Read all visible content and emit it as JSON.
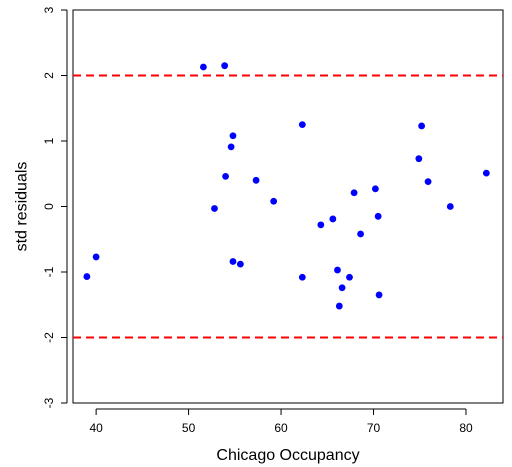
{
  "chart_data": {
    "type": "scatter",
    "title": "",
    "xlabel": "Chicago Occupancy",
    "ylabel": "std residuals",
    "xlim": [
      37.5,
      84
    ],
    "ylim": [
      -3.0,
      3.0
    ],
    "x_ticks": [
      40,
      50,
      60,
      70,
      80
    ],
    "y_ticks": [
      -3,
      -2,
      -1,
      0,
      1,
      2,
      3
    ],
    "x_tick_labels": [
      "40",
      "50",
      "60",
      "70",
      "80"
    ],
    "y_tick_labels": [
      "-3",
      "-2",
      "-1",
      "0",
      "1",
      "2",
      "3"
    ],
    "reference_lines": [
      {
        "y": 2,
        "style": "dashed",
        "color": "#ff0000"
      },
      {
        "y": -2,
        "style": "dashed",
        "color": "#ff0000"
      }
    ],
    "point_color": "#0000ff",
    "box": true,
    "grid": false,
    "points": [
      {
        "x": 39.0,
        "y": -1.07
      },
      {
        "x": 40.0,
        "y": -0.77
      },
      {
        "x": 51.6,
        "y": 2.13
      },
      {
        "x": 53.9,
        "y": 2.15
      },
      {
        "x": 52.8,
        "y": -0.03
      },
      {
        "x": 54.0,
        "y": 0.46
      },
      {
        "x": 54.6,
        "y": 0.91
      },
      {
        "x": 54.8,
        "y": 1.08
      },
      {
        "x": 54.8,
        "y": -0.84
      },
      {
        "x": 55.6,
        "y": -0.88
      },
      {
        "x": 57.3,
        "y": 0.4
      },
      {
        "x": 59.2,
        "y": 0.08
      },
      {
        "x": 62.3,
        "y": 1.25
      },
      {
        "x": 62.3,
        "y": -1.08
      },
      {
        "x": 64.3,
        "y": -0.28
      },
      {
        "x": 65.6,
        "y": -0.19
      },
      {
        "x": 66.1,
        "y": -0.97
      },
      {
        "x": 66.3,
        "y": -1.52
      },
      {
        "x": 66.6,
        "y": -1.24
      },
      {
        "x": 67.4,
        "y": -1.08
      },
      {
        "x": 67.9,
        "y": 0.21
      },
      {
        "x": 68.6,
        "y": -0.42
      },
      {
        "x": 70.2,
        "y": 0.27
      },
      {
        "x": 70.5,
        "y": -0.15
      },
      {
        "x": 70.6,
        "y": -1.35
      },
      {
        "x": 74.9,
        "y": 0.73
      },
      {
        "x": 75.2,
        "y": 1.23
      },
      {
        "x": 75.9,
        "y": 0.38
      },
      {
        "x": 78.3,
        "y": 0.0
      },
      {
        "x": 82.2,
        "y": 0.51
      }
    ]
  }
}
